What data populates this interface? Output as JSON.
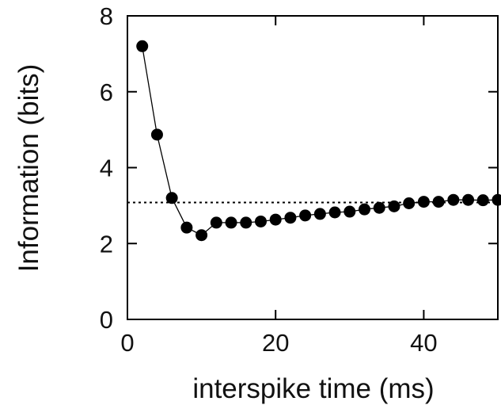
{
  "chart_data": {
    "type": "line",
    "title": "",
    "xlabel": "interspike time (ms)",
    "ylabel": "Information (bits)",
    "xlim": [
      0,
      50
    ],
    "ylim": [
      0,
      8
    ],
    "xticks": [
      0,
      20,
      40
    ],
    "yticks": [
      0,
      2,
      4,
      6,
      8
    ],
    "grid": false,
    "legend": "none",
    "series": [
      {
        "marker": "filled-circle",
        "line": "solid",
        "color": "#000000",
        "x": [
          2,
          4,
          6,
          8,
          10,
          12,
          14,
          16,
          18,
          20,
          22,
          24,
          26,
          28,
          30,
          32,
          34,
          36,
          38,
          40,
          42,
          44,
          46,
          48,
          50
        ],
        "y": [
          7.2,
          4.87,
          3.2,
          2.42,
          2.22,
          2.55,
          2.55,
          2.55,
          2.58,
          2.63,
          2.68,
          2.74,
          2.78,
          2.82,
          2.84,
          2.9,
          2.94,
          2.98,
          3.06,
          3.1,
          3.1,
          3.15,
          3.15,
          3.14,
          3.15
        ]
      }
    ],
    "reference_line": {
      "y": 3.08,
      "style": "dotted",
      "color": "#000000"
    }
  }
}
